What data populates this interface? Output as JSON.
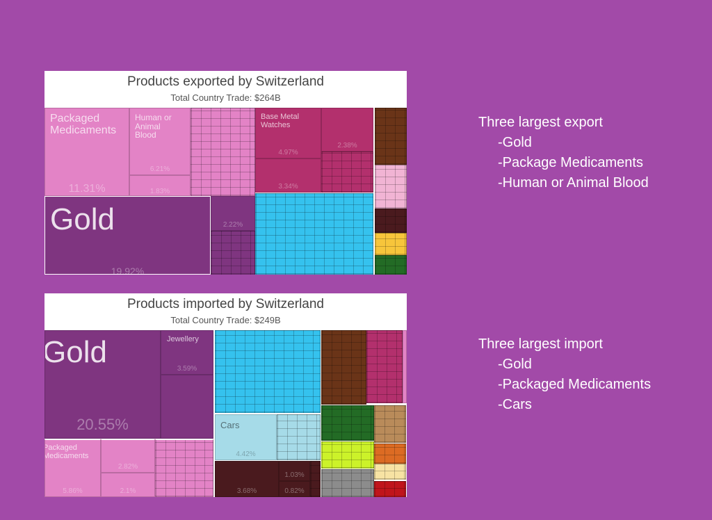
{
  "chart_data": [
    {
      "type": "treemap",
      "title": "Products exported by Switzerland",
      "subtitle": "Total Country Trade: $264B",
      "tiles": [
        {
          "label": "Gold",
          "value": 19.92,
          "color": "#7f3580"
        },
        {
          "label": "Packaged Medicaments",
          "value": 11.31,
          "color": "#e383c6"
        },
        {
          "label": "Human or Animal Blood",
          "value": 6.21,
          "color": "#e383c6"
        },
        {
          "label": "",
          "value": 1.83,
          "color": "#e383c6"
        },
        {
          "label": "Base Metal Watches",
          "value": 4.97,
          "color": "#b3306d"
        },
        {
          "label": "",
          "value": 3.34,
          "color": "#b3306d"
        },
        {
          "label": "",
          "value": 2.38,
          "color": "#b3306d"
        },
        {
          "label": "",
          "value": 2.22,
          "color": "#7f3580"
        }
      ]
    },
    {
      "type": "treemap",
      "title": "Products imported by Switzerland",
      "subtitle": "Total Country Trade: $249B",
      "tiles": [
        {
          "label": "Gold",
          "value": 20.55,
          "color": "#7f3580"
        },
        {
          "label": "Jewellery",
          "value": 3.59,
          "color": "#7f3580"
        },
        {
          "label": "Packaged Medicaments",
          "value": 5.86,
          "color": "#e383c6"
        },
        {
          "label": "",
          "value": 2.82,
          "color": "#e383c6"
        },
        {
          "label": "",
          "value": 2.1,
          "color": "#e383c6"
        },
        {
          "label": "Cars",
          "value": 4.42,
          "color": "#a6dbe8"
        },
        {
          "label": "",
          "value": 3.68,
          "color": "#4a1a1e"
        },
        {
          "label": "",
          "value": 1.03,
          "color": "#4a1a1e"
        },
        {
          "label": "",
          "value": 0.82,
          "color": "#4a1a1e"
        }
      ]
    }
  ],
  "side": {
    "export": {
      "heading": "Three largest export",
      "items": [
        "-Gold",
        "-Package Medicaments",
        "-Human or Animal Blood"
      ]
    },
    "import": {
      "heading": "Three largest import",
      "items": [
        "-Gold",
        "-Packaged Medicaments",
        "-Cars"
      ]
    }
  }
}
